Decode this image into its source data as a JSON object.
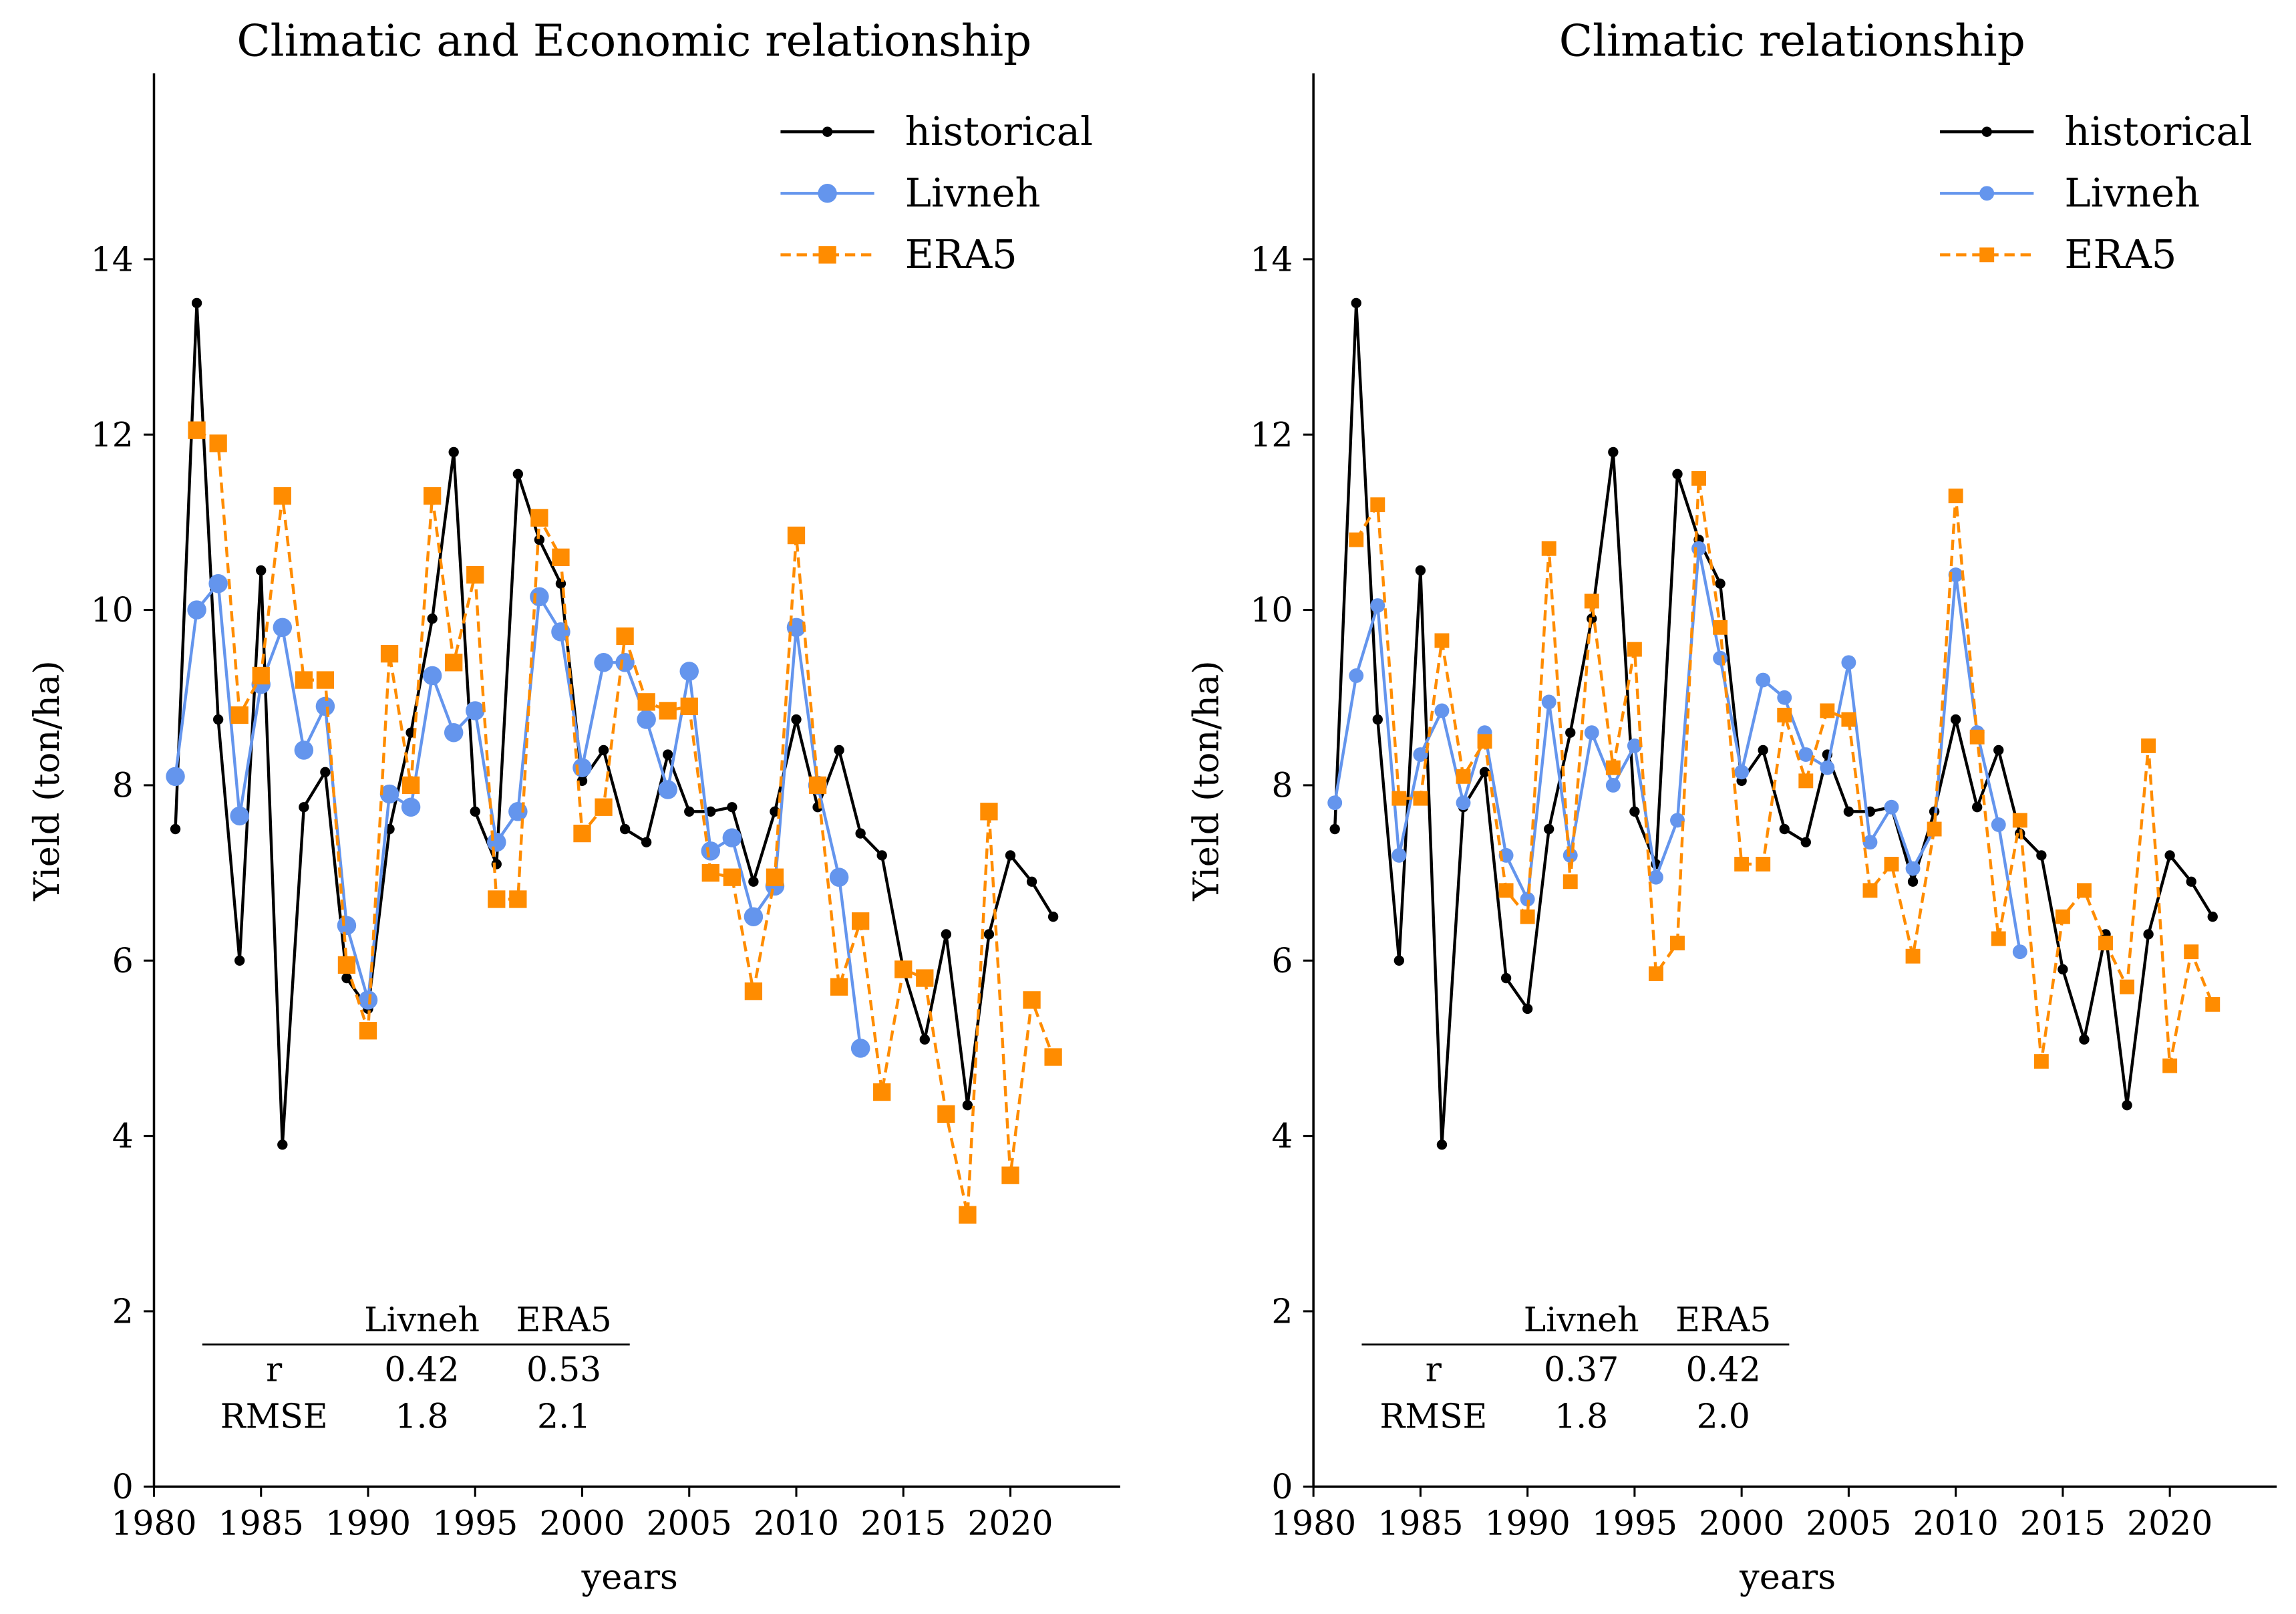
{
  "chart_data": [
    {
      "type": "line",
      "title": "Climatic and Economic relationship",
      "xlabel": "years",
      "ylabel": "Yield (ton/ha)",
      "xlim": [
        1980,
        2024.5
      ],
      "ylim": [
        0,
        16
      ],
      "xticks": [
        1980,
        1985,
        1990,
        1995,
        2000,
        2005,
        2010,
        2015,
        2020
      ],
      "yticks": [
        0,
        2,
        4,
        6,
        8,
        10,
        12,
        14
      ],
      "legend": {
        "position": "top-right",
        "entries": [
          "historical",
          "Livneh",
          "ERA5"
        ]
      },
      "series": [
        {
          "name": "historical",
          "color": "#000000",
          "style": "solid",
          "marker": "dot",
          "start_year": 1981,
          "values": [
            7.5,
            13.5,
            8.75,
            6.0,
            10.45,
            3.9,
            7.75,
            8.15,
            5.8,
            5.45,
            7.5,
            8.6,
            9.9,
            11.8,
            7.7,
            7.1,
            11.55,
            10.8,
            10.3,
            8.05,
            8.4,
            7.5,
            7.35,
            8.35,
            7.7,
            7.7,
            7.75,
            6.9,
            7.7,
            8.75,
            7.75,
            8.4,
            7.45,
            7.2,
            5.9,
            5.1,
            6.3,
            4.35,
            6.3,
            7.2,
            6.9,
            6.5
          ]
        },
        {
          "name": "Livneh",
          "color": "#6495ED",
          "style": "solid",
          "marker": "circle",
          "start_year": 1981,
          "values": [
            8.1,
            10.0,
            10.3,
            7.65,
            9.15,
            9.8,
            8.4,
            8.9,
            6.4,
            5.55,
            7.9,
            7.75,
            9.25,
            8.6,
            8.85,
            7.35,
            7.7,
            10.15,
            9.75,
            8.2,
            9.4,
            9.4,
            8.75,
            7.95,
            9.3,
            7.25,
            7.4,
            6.5,
            6.85,
            9.8,
            8.0,
            6.95,
            5.0
          ]
        },
        {
          "name": "ERA5",
          "color": "#FF8C00",
          "style": "dashed",
          "marker": "square",
          "start_year": 1982,
          "values": [
            12.05,
            11.9,
            8.8,
            9.25,
            11.3,
            9.2,
            9.2,
            5.95,
            5.2,
            9.5,
            8.0,
            11.3,
            9.4,
            10.4,
            6.7,
            6.7,
            11.05,
            10.6,
            7.45,
            7.75,
            9.7,
            8.95,
            8.85,
            8.9,
            7.0,
            6.95,
            5.65,
            6.95,
            10.85,
            8.0,
            5.7,
            6.45,
            4.5,
            5.9,
            5.8,
            4.25,
            3.1,
            7.7,
            3.55,
            5.55,
            4.9
          ]
        }
      ],
      "stats_table": {
        "headers": [
          "Livneh",
          "ERA5"
        ],
        "rows": [
          {
            "label": "r",
            "values": [
              "0.42",
              "0.53"
            ]
          },
          {
            "label": "RMSE",
            "values": [
              "1.8",
              "2.1"
            ]
          }
        ]
      }
    },
    {
      "type": "line",
      "title": "Climatic relationship",
      "xlabel": "years",
      "ylabel": "Yield (ton/ha)",
      "xlim": [
        1980,
        2024.5
      ],
      "ylim": [
        0,
        16
      ],
      "xticks": [
        1980,
        1985,
        1990,
        1995,
        2000,
        2005,
        2010,
        2015,
        2020
      ],
      "yticks": [
        0,
        2,
        4,
        6,
        8,
        10,
        12,
        14
      ],
      "legend": {
        "position": "top-right",
        "entries": [
          "historical",
          "Livneh",
          "ERA5"
        ]
      },
      "series": [
        {
          "name": "historical",
          "color": "#000000",
          "style": "solid",
          "marker": "dot",
          "start_year": 1981,
          "values": [
            7.5,
            13.5,
            8.75,
            6.0,
            10.45,
            3.9,
            7.75,
            8.15,
            5.8,
            5.45,
            7.5,
            8.6,
            9.9,
            11.8,
            7.7,
            7.1,
            11.55,
            10.8,
            10.3,
            8.05,
            8.4,
            7.5,
            7.35,
            8.35,
            7.7,
            7.7,
            7.75,
            6.9,
            7.7,
            8.75,
            7.75,
            8.4,
            7.45,
            7.2,
            5.9,
            5.1,
            6.3,
            4.35,
            6.3,
            7.2,
            6.9,
            6.5
          ]
        },
        {
          "name": "Livneh",
          "color": "#6495ED",
          "style": "solid",
          "marker": "circle-small",
          "start_year": 1981,
          "values": [
            7.8,
            9.25,
            10.05,
            7.2,
            8.35,
            8.85,
            7.8,
            8.6,
            7.2,
            6.7,
            8.95,
            7.2,
            8.6,
            8.0,
            8.45,
            6.95,
            7.6,
            10.7,
            9.45,
            8.15,
            9.2,
            9.0,
            8.35,
            8.2,
            9.4,
            7.35,
            7.75,
            7.05,
            7.5,
            10.4,
            8.6,
            7.55,
            6.1
          ]
        },
        {
          "name": "ERA5",
          "color": "#FF8C00",
          "style": "dashed",
          "marker": "square-small",
          "start_year": 1982,
          "values": [
            10.8,
            11.2,
            7.85,
            7.85,
            9.65,
            8.1,
            8.5,
            6.8,
            6.5,
            10.7,
            6.9,
            10.1,
            8.2,
            9.55,
            5.85,
            6.2,
            11.5,
            9.8,
            7.1,
            7.1,
            8.8,
            8.05,
            8.85,
            8.75,
            6.8,
            7.1,
            6.05,
            7.5,
            11.3,
            8.55,
            6.25,
            7.6,
            4.85,
            6.5,
            6.8,
            6.2,
            5.7,
            8.45,
            4.8,
            6.1,
            5.5
          ]
        }
      ],
      "stats_table": {
        "headers": [
          "Livneh",
          "ERA5"
        ],
        "rows": [
          {
            "label": "r",
            "values": [
              "0.37",
              "0.42"
            ]
          },
          {
            "label": "RMSE",
            "values": [
              "1.8",
              "2.0"
            ]
          }
        ]
      }
    }
  ]
}
